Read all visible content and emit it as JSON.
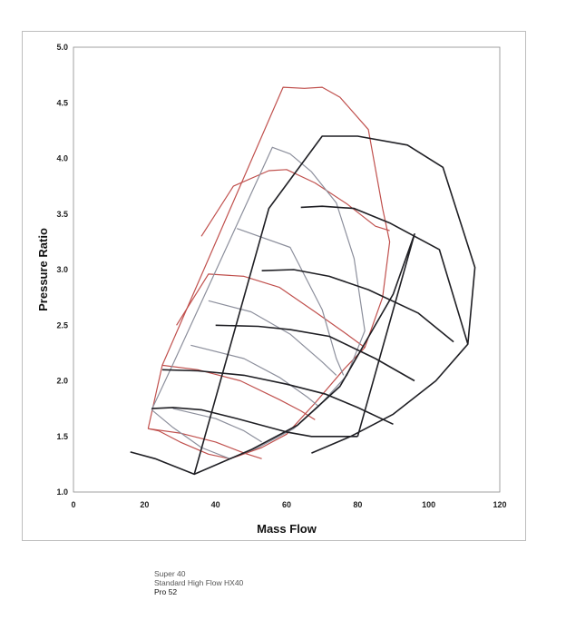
{
  "chart_data": {
    "type": "line",
    "title": "",
    "xlabel": "Mass Flow",
    "ylabel": "Pressure Ratio",
    "xlim": [
      0,
      120
    ],
    "ylim": [
      1.0,
      5.0
    ],
    "x_ticks": [
      "0",
      "20",
      "40",
      "60",
      "80",
      "100",
      "120"
    ],
    "y_ticks": [
      "1.0",
      "1.5",
      "2.0",
      "2.5",
      "3.0",
      "3.5",
      "4.0",
      "4.5",
      "5.0"
    ],
    "grid": false,
    "legend_position": "bottom-left",
    "legend": [
      "Super 40",
      "Standard High Flow HX40",
      "Pro 52"
    ],
    "maps": [
      {
        "name": "Super 40",
        "color": "#c0504d",
        "lines": [
          [
            [
              21,
              1.57
            ],
            [
              25,
              2.14
            ],
            [
              59,
              4.64
            ],
            [
              65,
              4.63
            ],
            [
              70,
              4.64
            ],
            [
              75,
              4.55
            ],
            [
              83,
              4.26
            ],
            [
              87,
              3.55
            ],
            [
              89,
              3.25
            ],
            [
              87,
              2.75
            ],
            [
              82,
              2.3
            ],
            [
              76,
              2.1
            ],
            [
              68,
              1.8
            ],
            [
              60,
              1.52
            ],
            [
              53,
              1.4
            ],
            [
              46,
              1.32
            ],
            [
              44,
              1.3
            ],
            [
              38,
              1.34
            ],
            [
              30,
              1.45
            ],
            [
              24,
              1.55
            ],
            [
              21,
              1.57
            ]
          ],
          [
            [
              36,
              3.3
            ],
            [
              45,
              3.75
            ],
            [
              55,
              3.89
            ],
            [
              60,
              3.9
            ],
            [
              68,
              3.78
            ],
            [
              77,
              3.59
            ],
            [
              85,
              3.39
            ],
            [
              89,
              3.35
            ]
          ],
          [
            [
              29,
              2.5
            ],
            [
              38,
              2.96
            ],
            [
              48,
              2.94
            ],
            [
              58,
              2.84
            ],
            [
              68,
              2.62
            ],
            [
              76,
              2.44
            ],
            [
              82,
              2.3
            ]
          ],
          [
            [
              25,
              2.14
            ],
            [
              35,
              2.1
            ],
            [
              47,
              2.0
            ],
            [
              58,
              1.83
            ],
            [
              64,
              1.73
            ],
            [
              68,
              1.65
            ]
          ],
          [
            [
              21,
              1.57
            ],
            [
              30,
              1.53
            ],
            [
              40,
              1.45
            ],
            [
              48,
              1.35
            ],
            [
              53,
              1.3
            ]
          ]
        ]
      },
      {
        "name": "Standard High Flow HX40",
        "color": "#8c8f9c",
        "lines": [
          [
            [
              22,
              1.74
            ],
            [
              28,
              2.15
            ],
            [
              56,
              4.1
            ],
            [
              61,
              4.04
            ],
            [
              67,
              3.88
            ],
            [
              74,
              3.6
            ],
            [
              79,
              3.1
            ],
            [
              82,
              2.45
            ],
            [
              77,
              2.05
            ],
            [
              69,
              1.77
            ],
            [
              62,
              1.57
            ],
            [
              52,
              1.4
            ],
            [
              44,
              1.3
            ],
            [
              36,
              1.4
            ],
            [
              28,
              1.58
            ],
            [
              22,
              1.74
            ]
          ],
          [
            [
              46,
              3.37
            ],
            [
              61,
              3.2
            ],
            [
              70,
              2.64
            ],
            [
              74,
              2.2
            ],
            [
              76,
              2.05
            ]
          ],
          [
            [
              38,
              2.72
            ],
            [
              50,
              2.62
            ],
            [
              61,
              2.42
            ],
            [
              70,
              2.17
            ],
            [
              74,
              2.05
            ]
          ],
          [
            [
              33,
              2.32
            ],
            [
              48,
              2.2
            ],
            [
              58,
              2.03
            ],
            [
              66,
              1.85
            ],
            [
              69,
              1.77
            ]
          ],
          [
            [
              28,
              1.75
            ],
            [
              40,
              1.66
            ],
            [
              48,
              1.55
            ],
            [
              53,
              1.45
            ]
          ]
        ]
      },
      {
        "name": "Pro 52",
        "color": "#1f1f24",
        "lines": [
          [
            [
              16,
              1.36
            ],
            [
              23,
              1.3
            ],
            [
              34,
              1.16
            ],
            [
              50,
              1.38
            ],
            [
              63,
              1.6
            ],
            [
              75,
              1.95
            ],
            [
              90,
              2.78
            ],
            [
              96,
              3.32
            ],
            [
              80,
              1.5
            ]
          ],
          [
            [
              34,
              1.16
            ],
            [
              55,
              3.55
            ],
            [
              70,
              4.2
            ],
            [
              80,
              4.2
            ],
            [
              94,
              4.12
            ],
            [
              104,
              3.92
            ],
            [
              113,
              3.02
            ],
            [
              111,
              2.33
            ],
            [
              102,
              2.0
            ],
            [
              90,
              1.7
            ],
            [
              78,
              1.5
            ],
            [
              67,
              1.35
            ]
          ],
          [
            [
              22,
              1.75
            ],
            [
              28,
              1.76
            ],
            [
              36,
              1.74
            ],
            [
              46,
              1.66
            ],
            [
              53,
              1.6
            ],
            [
              60,
              1.54
            ],
            [
              67,
              1.5
            ],
            [
              72,
              1.5
            ],
            [
              80,
              1.5
            ]
          ],
          [
            [
              25,
              2.1
            ],
            [
              35,
              2.09
            ],
            [
              48,
              2.05
            ],
            [
              60,
              1.97
            ],
            [
              71,
              1.88
            ],
            [
              80,
              1.76
            ],
            [
              90,
              1.61
            ]
          ],
          [
            [
              40,
              2.5
            ],
            [
              52,
              2.49
            ],
            [
              61,
              2.46
            ],
            [
              72,
              2.4
            ],
            [
              85,
              2.2
            ],
            [
              96,
              2.0
            ]
          ],
          [
            [
              53,
              2.99
            ],
            [
              62,
              3.0
            ],
            [
              72,
              2.94
            ],
            [
              83,
              2.82
            ],
            [
              97,
              2.61
            ],
            [
              107,
              2.35
            ]
          ],
          [
            [
              64,
              3.56
            ],
            [
              70,
              3.57
            ],
            [
              79,
              3.55
            ],
            [
              89,
              3.42
            ],
            [
              103,
              3.18
            ],
            [
              111,
              2.33
            ]
          ]
        ]
      }
    ]
  },
  "legend_labels": {
    "super40": "Super 40",
    "hx40": "Standard High Flow HX40",
    "pro52": "Pro 52"
  }
}
